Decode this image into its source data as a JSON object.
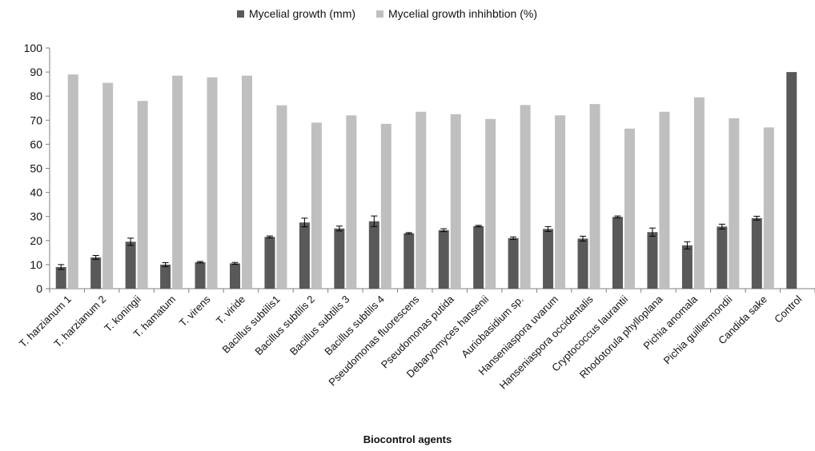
{
  "chart_data": {
    "type": "bar",
    "xlabel": "Biocontrol agents",
    "ylabel": "",
    "ylim": [
      0,
      100
    ],
    "yticks": [
      0,
      10,
      20,
      30,
      40,
      50,
      60,
      70,
      80,
      90,
      100
    ],
    "grid": false,
    "legend_position": "top-center",
    "categories": [
      "T. harzianum 1",
      "T. harzianum 2",
      "T. koningii",
      "T. hamatum",
      "T. virens",
      "T. viride",
      "Bacillus subtilis1",
      "Bacillus subtilis  2",
      "Bacillus subtilis 3",
      "Bacillus subtilis 4",
      "Pseudomonas fluorescens",
      "Pseudomonas putida",
      "Debaryomyces hansenii",
      "Auriobasidium sp.",
      "Hanseniaspora uvarum",
      "Hanseniaspora occidentalis",
      "Cryptococcus laurantii",
      "Rhodotorula phylloplana",
      "Pichia anomala",
      "Pichia guilliermondii",
      "Candida sake",
      "Control"
    ],
    "series": [
      {
        "name": "Mycelial growth (mm)",
        "color": "#595959",
        "values": [
          9,
          13,
          19.5,
          10,
          11,
          10.5,
          21.5,
          27.5,
          25,
          28,
          23,
          24.3,
          26,
          21,
          24.8,
          20.8,
          29.8,
          23.5,
          18,
          25.8,
          29.3,
          90
        ],
        "errors": [
          1,
          0.8,
          1.5,
          0.8,
          0.3,
          0.4,
          0.4,
          1.8,
          1,
          2.2,
          0.3,
          0.6,
          0.3,
          0.5,
          1,
          1,
          0.4,
          1.7,
          1.5,
          1,
          0.8,
          0
        ]
      },
      {
        "name": "Mycelial growth inhihbtion (%)",
        "color": "#bfbfbf",
        "values": [
          89,
          85.5,
          78,
          88.5,
          87.8,
          88.5,
          76.2,
          69,
          72,
          68.5,
          73.5,
          72.5,
          70.5,
          76.3,
          72,
          76.7,
          66.5,
          73.5,
          79.5,
          70.8,
          67,
          null
        ]
      }
    ]
  }
}
